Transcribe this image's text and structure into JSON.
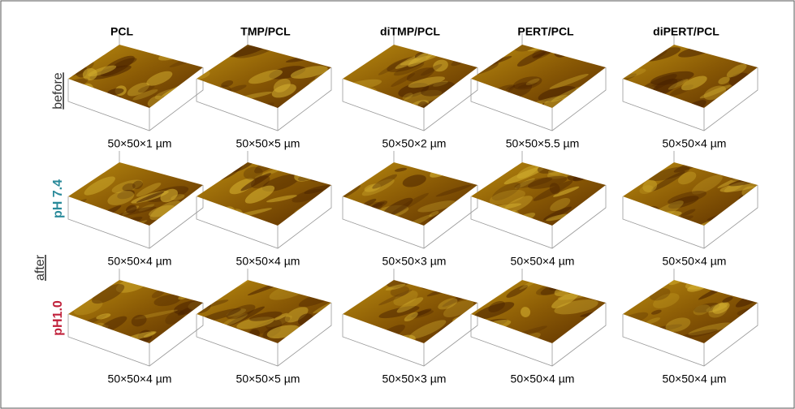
{
  "columns": [
    "PCL",
    "TMP/PCL",
    "diTMP/PCL",
    "PERT/PCL",
    "diPERT/PCL"
  ],
  "row_labels": {
    "before": "before",
    "after": "after",
    "ph74": "pH 7.4",
    "ph10": "pH1.0"
  },
  "captions": [
    [
      "50×50×1 µm",
      "50×50×5 µm",
      "50×50×2 µm",
      "50×50×5.5 µm",
      "50×50×4 µm"
    ],
    [
      "50×50×4 µm",
      "50×50×4 µm",
      "50×50×3 µm",
      "50×50×4 µm",
      "50×50×4 µm"
    ],
    [
      "50×50×4 µm",
      "50×50×5 µm",
      "50×50×3 µm",
      "50×50×4 µm",
      "50×50×4 µm"
    ]
  ]
}
